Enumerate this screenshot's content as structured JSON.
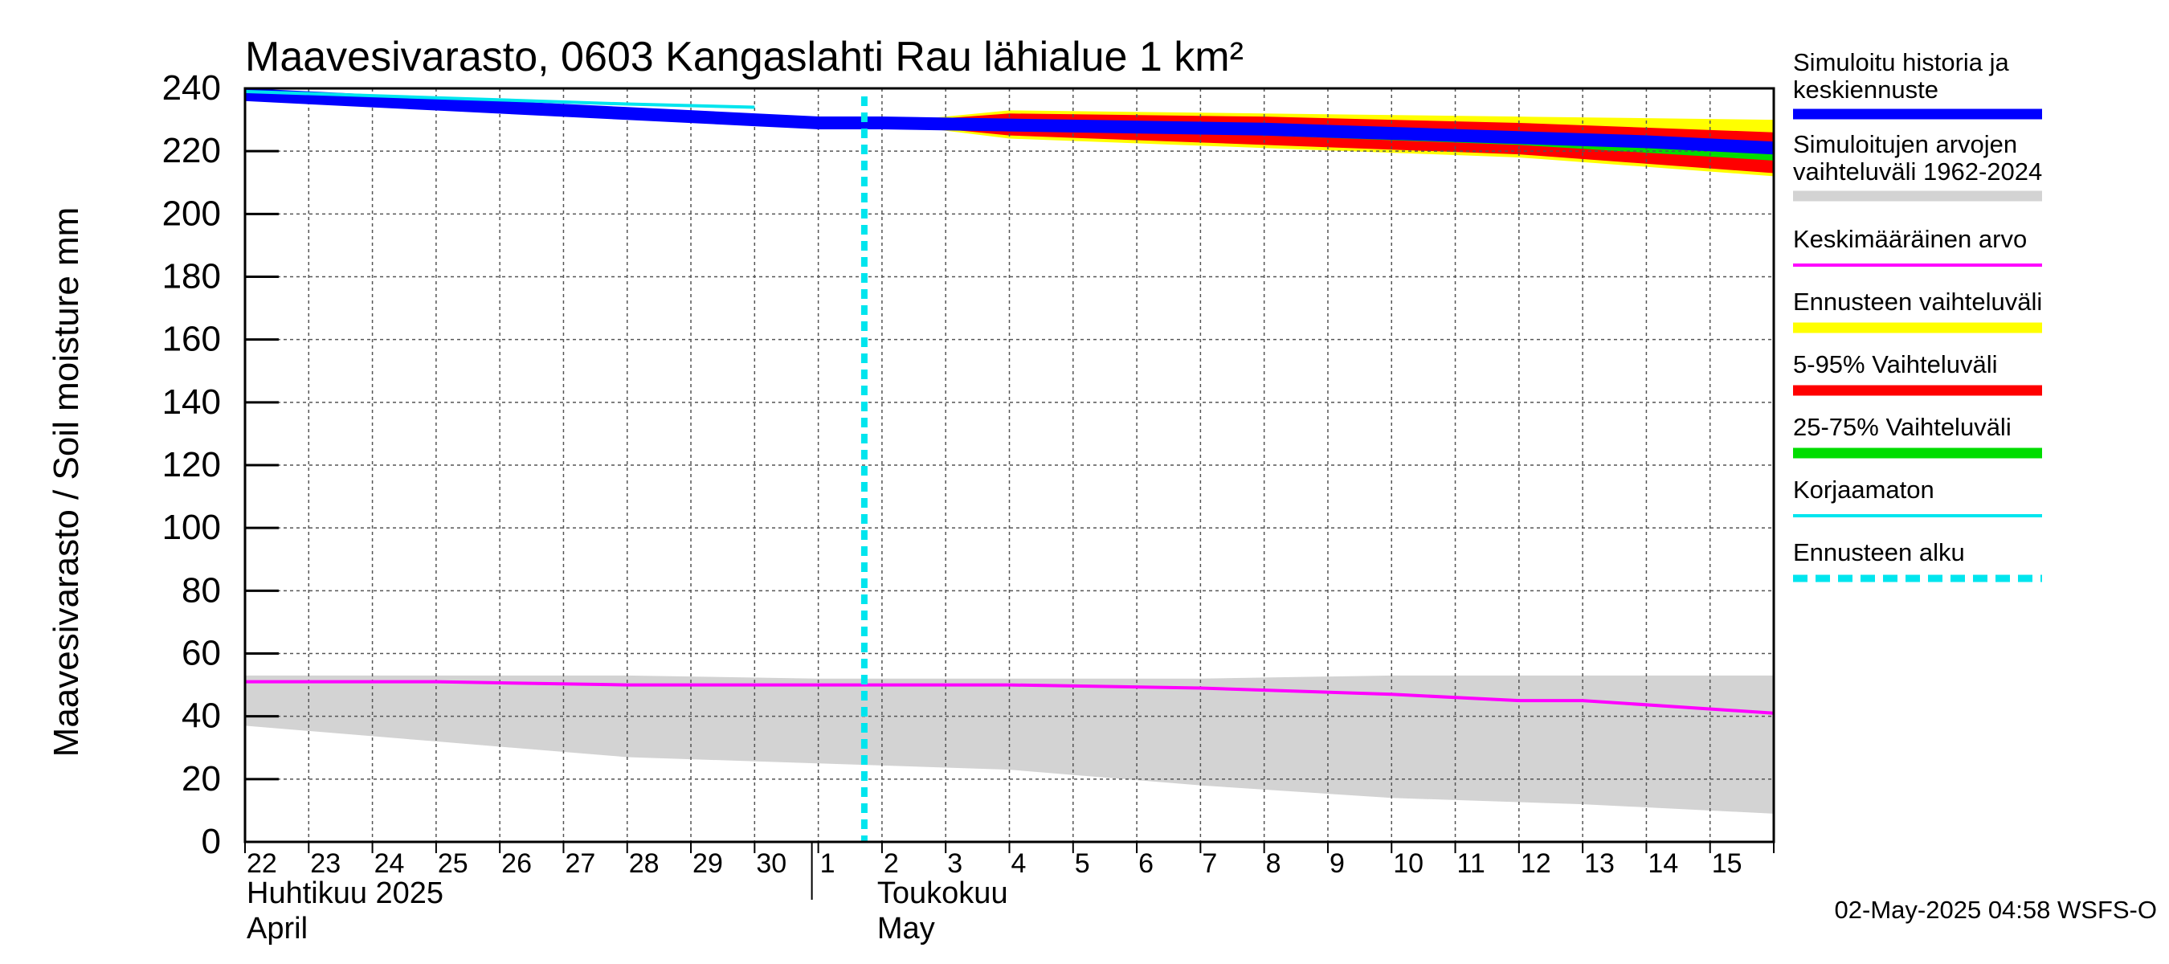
{
  "chart_data": {
    "type": "area",
    "title": "Maavesivarasto, 0603 Kangaslahti Rau lähialue 1 km²",
    "ylabel": "Maavesivarasto / Soil moisture   mm",
    "xlabel": "",
    "ylim": [
      0,
      240
    ],
    "y_ticks": [
      0,
      20,
      40,
      60,
      80,
      100,
      120,
      140,
      160,
      180,
      200,
      220,
      240
    ],
    "x_range": [
      "2025-04-22",
      "2025-05-16"
    ],
    "x_tick_labels": [
      "22",
      "23",
      "24",
      "25",
      "26",
      "27",
      "28",
      "29",
      "30",
      "1",
      "2",
      "3",
      "4",
      "5",
      "6",
      "7",
      "8",
      "9",
      "10",
      "11",
      "12",
      "13",
      "14",
      "15"
    ],
    "month_labels": [
      {
        "line1": "Huhtikuu  2025",
        "line2": "April",
        "date": "2025-04-22"
      },
      {
        "line1": "Toukokuu",
        "line2": "May",
        "date": "2025-05-02"
      }
    ],
    "grid": true,
    "legend_position": "right",
    "forecast_start": "2025-05-02",
    "history_range_band": {
      "name": "Simuloitujen arvojen vaihteluväli 1962-2024",
      "color": "#d3d3d3",
      "x": [
        "2025-04-22",
        "2025-04-25",
        "2025-04-28",
        "2025-05-01",
        "2025-05-04",
        "2025-05-07",
        "2025-05-10",
        "2025-05-13",
        "2025-05-16"
      ],
      "upper": [
        53,
        53,
        53,
        52,
        52,
        52,
        53,
        53,
        53
      ],
      "lower": [
        37,
        32,
        27,
        25,
        23,
        18,
        14,
        12,
        9
      ]
    },
    "series": [
      {
        "name": "Simuloitu historia ja keskiennuste",
        "color": "#0000ff",
        "x": [
          "2025-04-22",
          "2025-04-25",
          "2025-04-28",
          "2025-04-30",
          "2025-05-01",
          "2025-05-02",
          "2025-05-05",
          "2025-05-08",
          "2025-05-11",
          "2025-05-14",
          "2025-05-16"
        ],
        "values": [
          238,
          235,
          232,
          230,
          229,
          229,
          228,
          227,
          225,
          223,
          221
        ]
      },
      {
        "name": "Keskimääräinen arvo",
        "color": "#ff00ff",
        "x": [
          "2025-04-22",
          "2025-04-25",
          "2025-04-28",
          "2025-05-01",
          "2025-05-04",
          "2025-05-07",
          "2025-05-10",
          "2025-05-12",
          "2025-05-13",
          "2025-05-16"
        ],
        "values": [
          51,
          51,
          50,
          50,
          50,
          49,
          47,
          45,
          45,
          41
        ]
      },
      {
        "name": "Korjaamaton",
        "color": "#00e5ee",
        "x": [
          "2025-04-22",
          "2025-04-25",
          "2025-04-28",
          "2025-04-30"
        ],
        "values": [
          239,
          237,
          235,
          234
        ]
      }
    ],
    "forecast_bands": [
      {
        "name": "Ennusteen vaihteluväli",
        "color": "#ffff00",
        "x": [
          "2025-05-02",
          "2025-05-04",
          "2025-05-08",
          "2025-05-12",
          "2025-05-16"
        ],
        "upper": [
          229,
          233,
          232,
          231,
          230
        ],
        "lower": [
          229,
          224,
          221,
          218,
          212
        ]
      },
      {
        "name": "5-95% Vaihteluväli",
        "color": "#ff0000",
        "x": [
          "2025-05-02",
          "2025-05-04",
          "2025-05-08",
          "2025-05-12",
          "2025-05-16"
        ],
        "upper": [
          229,
          232,
          231,
          229,
          226
        ],
        "lower": [
          229,
          225,
          222,
          219,
          213
        ]
      },
      {
        "name": "25-75% Vaihteluväli",
        "color": "#00dd00",
        "x": [
          "2025-05-02",
          "2025-05-04",
          "2025-05-08",
          "2025-05-12",
          "2025-05-16"
        ],
        "upper": [
          229,
          230,
          228,
          226,
          223
        ],
        "lower": [
          229,
          227,
          225,
          222,
          217
        ]
      }
    ]
  },
  "legend": {
    "items": [
      {
        "text1": "Simuloitu historia ja",
        "text2": "keskiennuste",
        "color": "#0000ff",
        "style": "thick"
      },
      {
        "text1": "Simuloitujen arvojen",
        "text2": "vaihteluväli 1962-2024",
        "color": "#d3d3d3",
        "style": "thick"
      },
      {
        "text1": "Keskimääräinen arvo",
        "text2": "",
        "color": "#ff00ff",
        "style": "thin"
      },
      {
        "text1": "Ennusteen vaihteluväli",
        "text2": "",
        "color": "#ffff00",
        "style": "thick"
      },
      {
        "text1": "5-95% Vaihteluväli",
        "text2": "",
        "color": "#ff0000",
        "style": "thick"
      },
      {
        "text1": "25-75% Vaihteluväli",
        "text2": "",
        "color": "#00dd00",
        "style": "thick"
      },
      {
        "text1": "Korjaamaton",
        "text2": "",
        "color": "#00e5ee",
        "style": "thin"
      },
      {
        "text1": "Ennusteen alku",
        "text2": "",
        "color": "#00e5ee",
        "style": "dashed"
      }
    ]
  },
  "timestamp": "02-May-2025 04:58 WSFS-O"
}
